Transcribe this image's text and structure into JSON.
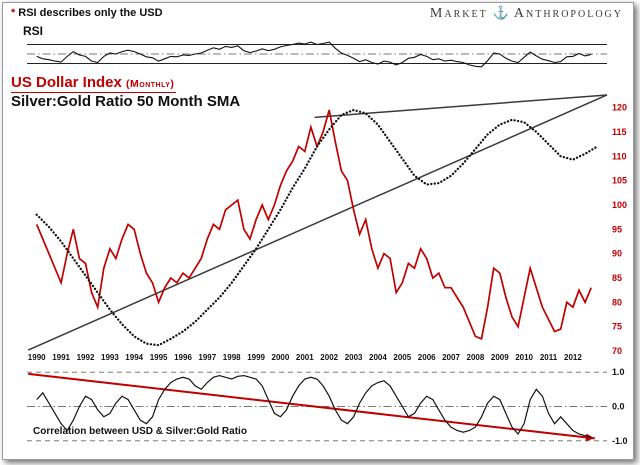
{
  "card": {
    "note_star": "*",
    "note_text": "RSI describes only the USD",
    "brand_left": "Market",
    "anchor_icon": "⚓",
    "brand_right": "Anthropology"
  },
  "rsi_panel": {
    "label": "RSI"
  },
  "titles": {
    "usd": "US Dollar Index",
    "usd_suffix": "(Monthly)",
    "ratio": "Silver:Gold Ratio 50 Month SMA",
    "correlation": "Correlation between USD & Silver:Gold Ratio"
  },
  "colors": {
    "red": "#c00000",
    "black": "#141414",
    "dark": "#3a3a3a",
    "grid": "#777777"
  },
  "chart_data": [
    {
      "type": "line",
      "title": "RSI (describes only the USD)",
      "xlim": [
        1989.6,
        2013.4
      ],
      "ylim": [
        10,
        90
      ],
      "gridlines": {
        "solid": [
          70,
          30
        ],
        "dashdot": [
          50
        ]
      },
      "series": [
        {
          "name": "RSI of US Dollar Index",
          "color": "black",
          "style": "solid",
          "x_start": 1990,
          "x_step": 0.25,
          "values": [
            45,
            40,
            38,
            35,
            33,
            45,
            55,
            48,
            45,
            35,
            32,
            45,
            52,
            50,
            55,
            58,
            55,
            50,
            44,
            42,
            35,
            40,
            45,
            44,
            48,
            47,
            50,
            52,
            58,
            63,
            60,
            66,
            64,
            67,
            57,
            53,
            56,
            61,
            57,
            60,
            65,
            68,
            70,
            73,
            71,
            75,
            70,
            72,
            75,
            62,
            52,
            47,
            41,
            34,
            38,
            32,
            29,
            35,
            33,
            27,
            32,
            41,
            43,
            49,
            45,
            38,
            40,
            35,
            37,
            34,
            32,
            27,
            24,
            23,
            36,
            52,
            50,
            41,
            35,
            32,
            43,
            54,
            46,
            39,
            36,
            32,
            34,
            44,
            45,
            51,
            46,
            49
          ]
        }
      ]
    },
    {
      "type": "line",
      "title": "US Dollar Index (Monthly) vs Silver:Gold Ratio 50 Month SMA",
      "xlim": [
        1989.6,
        2013.4
      ],
      "ylim": [
        70,
        123
      ],
      "y_ticks": [
        "120",
        "115",
        "110",
        "105",
        "100",
        "95",
        "90",
        "85",
        "80",
        "75",
        "70"
      ],
      "y_tick_color": "#c00000",
      "x_ticks": [
        1990,
        1991,
        1992,
        1993,
        1994,
        1995,
        1996,
        1997,
        1998,
        1999,
        2000,
        2001,
        2002,
        2003,
        2004,
        2005,
        2006,
        2007,
        2008,
        2009,
        2010,
        2011,
        2012
      ],
      "series": [
        {
          "name": "US Dollar Index",
          "color": "red",
          "style": "solid",
          "x_start": 1990,
          "x_step": 0.25,
          "values": [
            96,
            93,
            90,
            87,
            84,
            90,
            95,
            89,
            88,
            82,
            79,
            87,
            91,
            89,
            93,
            96,
            95,
            90,
            86,
            84,
            80,
            83,
            85,
            84,
            86,
            85,
            87,
            89,
            93,
            96,
            95,
            99,
            100,
            101,
            95,
            93,
            97,
            100,
            97,
            100,
            104,
            107,
            109,
            112,
            111,
            116,
            112,
            115,
            119.5,
            113,
            107,
            105,
            99,
            94,
            97,
            91,
            87,
            90,
            89,
            82,
            84,
            88,
            87,
            91,
            89,
            85,
            86,
            83,
            83,
            81,
            79,
            76,
            73,
            72.5,
            79,
            87,
            86,
            81,
            77,
            75,
            81,
            87,
            83,
            79,
            76.5,
            74,
            74.5,
            80,
            79,
            82.5,
            80,
            83
          ]
        },
        {
          "name": "Silver:Gold Ratio 50 Month SMA",
          "color": "black",
          "style": "dotted",
          "x_start": 1990,
          "x_step": 0.5,
          "values": [
            98,
            95.5,
            92.5,
            89,
            85.5,
            82,
            78.5,
            75.5,
            73,
            71.5,
            71.2,
            72.5,
            74,
            76,
            78.5,
            81,
            84,
            87.5,
            91,
            95,
            99,
            103.5,
            107.5,
            112,
            115.5,
            118.5,
            119.5,
            118.8,
            116.5,
            113,
            109.5,
            106,
            104.2,
            104.5,
            106,
            108.5,
            111.5,
            114.5,
            116.5,
            117.5,
            117,
            115,
            112.5,
            110,
            109.3,
            110.5,
            112
          ]
        }
      ],
      "trendlines": [
        {
          "name": "ascending support line",
          "from": [
            1989.65,
            70.2
          ],
          "to": [
            2013.4,
            122.6
          ],
          "color": "dark"
        },
        {
          "name": "upper converging line",
          "from": [
            2001.4,
            118.0
          ],
          "to": [
            2013.4,
            122.6
          ],
          "color": "dark"
        }
      ]
    },
    {
      "type": "line",
      "title": "Correlation between USD & Silver:Gold Ratio",
      "xlim": [
        1989.6,
        2013.4
      ],
      "ylim": [
        -1.18,
        1.18
      ],
      "y_ticks": [
        "1.0",
        "0.0",
        "-1.0"
      ],
      "y_tick_color": "#111111",
      "gridlines": {
        "dashed": [
          1.0,
          -1.0
        ],
        "dashdot": [
          0
        ]
      },
      "series": [
        {
          "name": "Correlation USD vs Silver:Gold Ratio",
          "color": "black",
          "style": "solid",
          "x_start": 1990,
          "x_step": 0.25,
          "values": [
            0.2,
            0.4,
            0.1,
            -0.2,
            -0.5,
            -0.7,
            -0.4,
            0.0,
            0.3,
            0.2,
            -0.1,
            -0.3,
            -0.2,
            0.1,
            0.3,
            0.2,
            -0.1,
            -0.4,
            -0.5,
            -0.3,
            0.2,
            0.5,
            0.7,
            0.8,
            0.85,
            0.8,
            0.6,
            0.5,
            0.7,
            0.85,
            0.9,
            0.85,
            0.8,
            0.88,
            0.9,
            0.85,
            0.8,
            0.6,
            0.2,
            -0.2,
            -0.3,
            -0.1,
            0.3,
            0.6,
            0.8,
            0.85,
            0.8,
            0.6,
            0.3,
            -0.1,
            -0.4,
            -0.5,
            -0.3,
            0.1,
            0.4,
            0.6,
            0.7,
            0.75,
            0.6,
            0.3,
            0.0,
            -0.3,
            -0.2,
            0.1,
            0.3,
            0.2,
            -0.1,
            -0.4,
            -0.6,
            -0.7,
            -0.75,
            -0.7,
            -0.6,
            -0.3,
            0.1,
            0.3,
            0.2,
            -0.2,
            -0.6,
            -0.8,
            -0.5,
            0.2,
            0.5,
            0.3,
            -0.2,
            -0.5,
            -0.3,
            -0.5,
            -0.7,
            -0.8,
            -0.85,
            -0.9
          ]
        }
      ],
      "trendlines": [
        {
          "name": "declining correlation trendline",
          "from": [
            1989.65,
            0.95
          ],
          "to": [
            2012.9,
            -0.93
          ],
          "color": "red",
          "arrow": true
        }
      ]
    }
  ]
}
